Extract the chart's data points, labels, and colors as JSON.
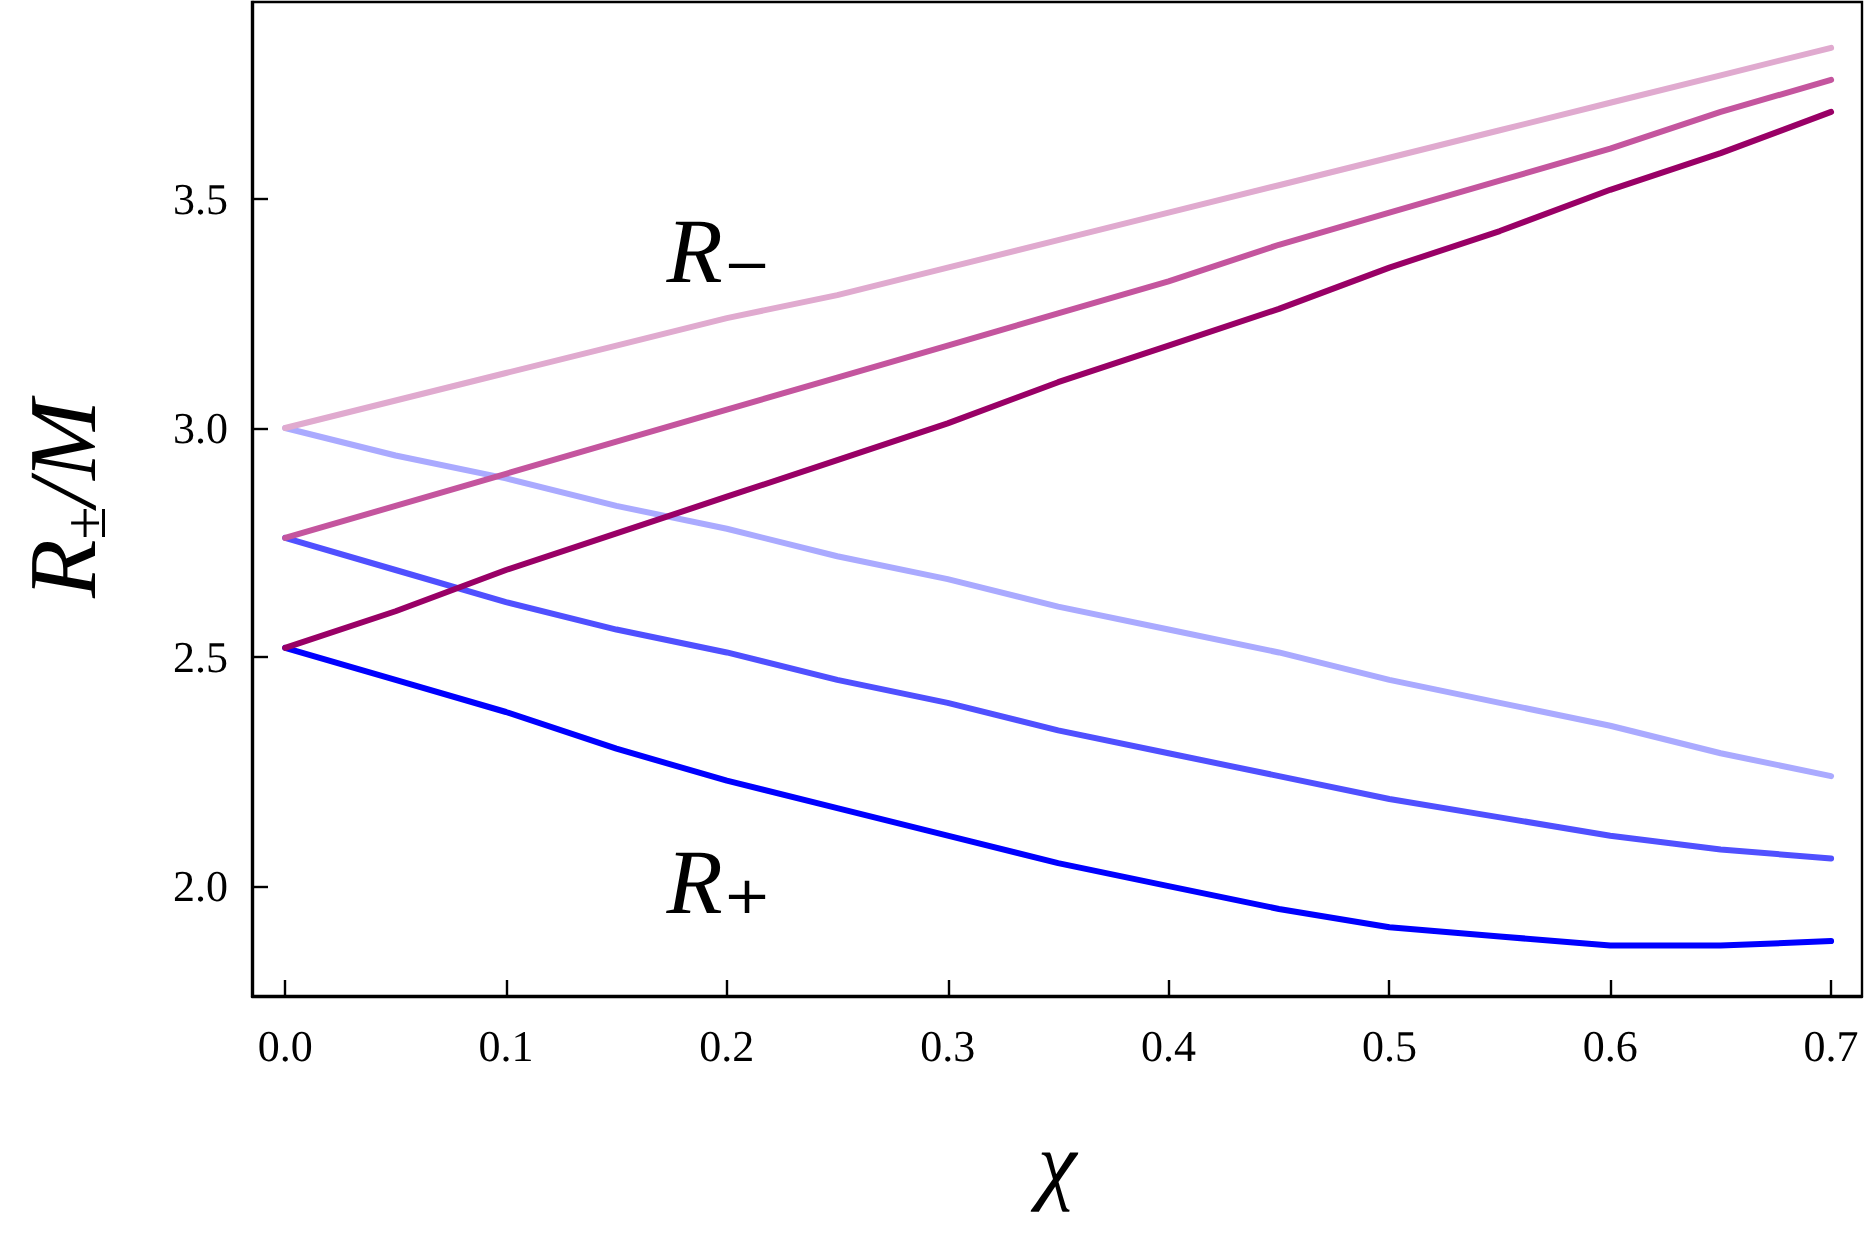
{
  "chart_data": {
    "type": "line",
    "xlabel": "χ",
    "ylabel": "R$_{±}$/M",
    "x": [
      0,
      0.05,
      0.1,
      0.15,
      0.2,
      0.25,
      0.3,
      0.35,
      0.4,
      0.45,
      0.5,
      0.55,
      0.6,
      0.65,
      0.7
    ],
    "series": [
      {
        "color": "#0000ff",
        "values": [
          2.52,
          2.45,
          2.38,
          2.3,
          2.23,
          2.17,
          2.11,
          2.05,
          2.0,
          1.95,
          1.91,
          1.89,
          1.87,
          1.87,
          1.88
        ]
      },
      {
        "color": "#5050ff",
        "values": [
          2.76,
          2.69,
          2.62,
          2.56,
          2.51,
          2.45,
          2.4,
          2.34,
          2.29,
          2.24,
          2.19,
          2.15,
          2.11,
          2.08,
          2.06
        ]
      },
      {
        "color": "#aaaaff",
        "values": [
          3.0,
          2.94,
          2.89,
          2.83,
          2.78,
          2.72,
          2.67,
          2.61,
          2.56,
          2.51,
          2.45,
          2.4,
          2.35,
          2.29,
          2.24
        ]
      },
      {
        "color": "#990066",
        "values": [
          2.52,
          2.6,
          2.69,
          2.77,
          2.85,
          2.93,
          3.01,
          3.1,
          3.18,
          3.26,
          3.35,
          3.43,
          3.52,
          3.6,
          3.69
        ]
      },
      {
        "color": "#c4559e",
        "values": [
          2.76,
          2.83,
          2.9,
          2.97,
          3.04,
          3.11,
          3.18,
          3.25,
          3.32,
          3.4,
          3.47,
          3.54,
          3.61,
          3.69,
          3.76
        ]
      },
      {
        "color": "#e0aacf",
        "values": [
          3.0,
          3.06,
          3.12,
          3.18,
          3.24,
          3.29,
          3.35,
          3.41,
          3.47,
          3.53,
          3.59,
          3.65,
          3.71,
          3.77,
          3.83
        ]
      }
    ],
    "xlim": [
      -0.015,
      0.714
    ],
    "ylim": [
      1.76,
      3.93
    ],
    "xticks": [
      {
        "value": 0,
        "label": "0.0"
      },
      0.1,
      0.2,
      0.3,
      0.4,
      0.5,
      0.6,
      0.7
    ],
    "yticks": [
      {
        "value": 2,
        "label": "2.0"
      },
      2.5,
      {
        "value": 3,
        "label": "3.0"
      },
      3.5
    ],
    "annotations": [
      "R₋",
      "R₊"
    ],
    "line_style": "solid"
  }
}
